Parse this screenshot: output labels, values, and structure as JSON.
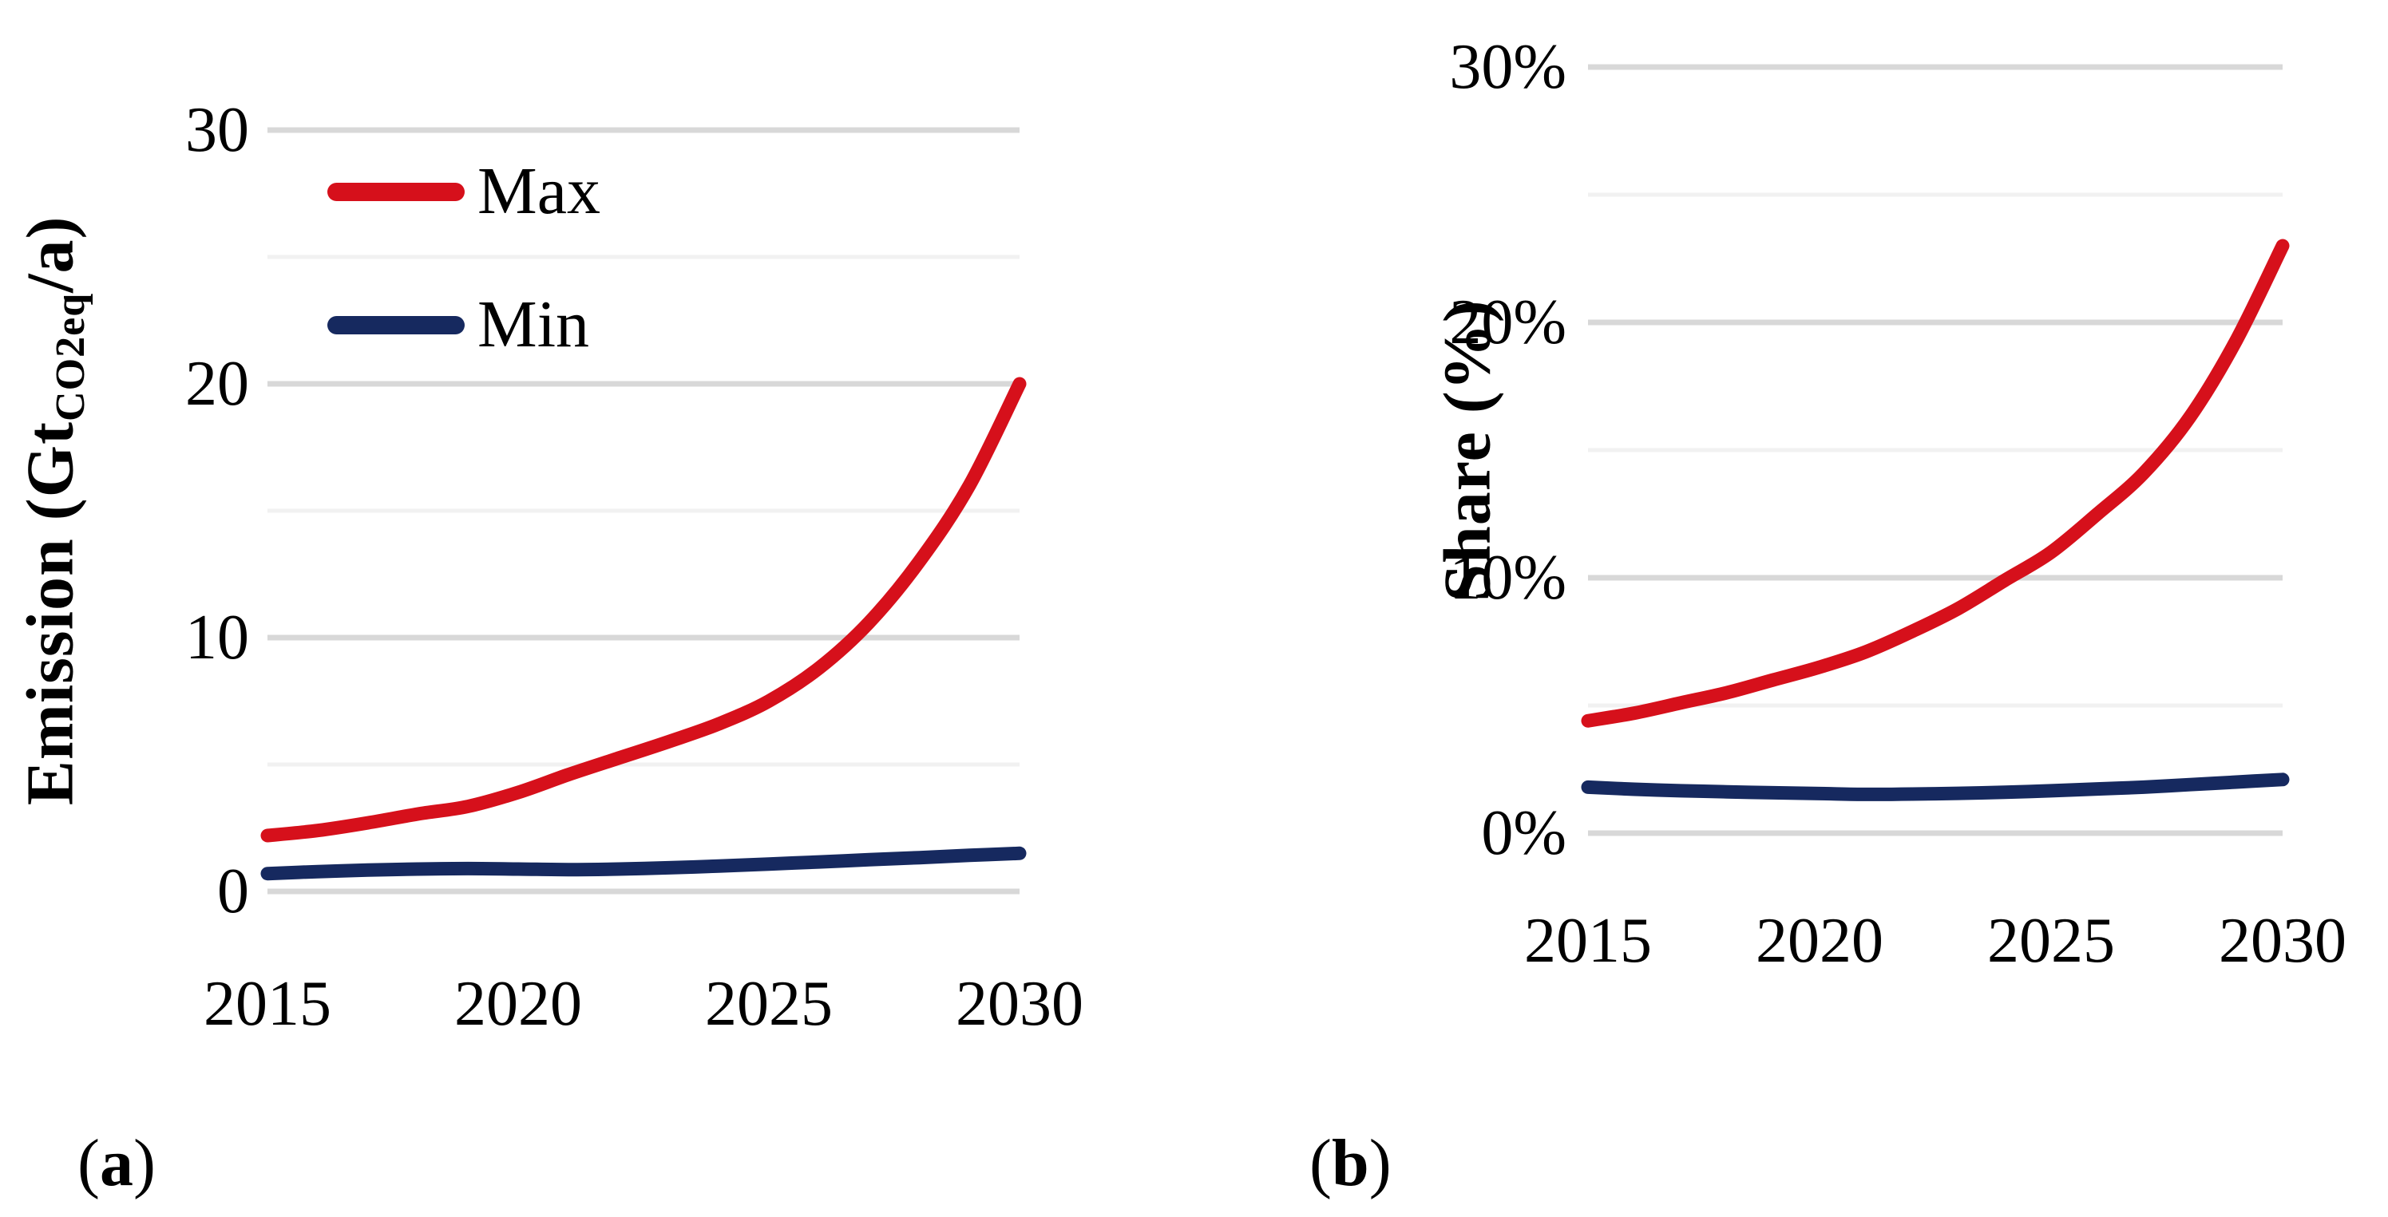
{
  "page": {
    "background": "#ffffff"
  },
  "colors": {
    "max": "#d6101b",
    "min": "#16295f",
    "grid_major": "#d8d8d8",
    "grid_minor": "#f1f1f1",
    "text": "#000000"
  },
  "legend": {
    "max_label": "Max",
    "min_label": "Min"
  },
  "captions": {
    "a": {
      "open": "(",
      "letter": "a",
      "close": ")"
    },
    "b": {
      "open": "(",
      "letter": "b",
      "close": ")"
    }
  },
  "chart_data": [
    {
      "id": "a",
      "type": "line",
      "title": "",
      "xlabel": "",
      "ylabel_parts": [
        {
          "text": "Emission (Gt"
        },
        {
          "text": "CO2eq",
          "sub": true
        },
        {
          "text": "/a)"
        }
      ],
      "x": [
        2015,
        2016,
        2017,
        2018,
        2019,
        2020,
        2021,
        2022,
        2023,
        2024,
        2025,
        2026,
        2027,
        2028,
        2029,
        2030
      ],
      "series": [
        {
          "name": "Max",
          "color_key": "max",
          "values": [
            2.2,
            2.4,
            2.7,
            3.05,
            3.35,
            3.9,
            4.6,
            5.25,
            5.9,
            6.6,
            7.5,
            8.8,
            10.6,
            13.0,
            16.0,
            20.0
          ]
        },
        {
          "name": "Min",
          "color_key": "min",
          "values": [
            0.7,
            0.78,
            0.84,
            0.88,
            0.9,
            0.88,
            0.86,
            0.88,
            0.93,
            1.0,
            1.08,
            1.16,
            1.25,
            1.33,
            1.42,
            1.5
          ]
        }
      ],
      "x_range": [
        2015,
        2030
      ],
      "y_range": [
        0,
        30
      ],
      "grid": true,
      "legend_position": "top-left-inside",
      "y_grid_major": [
        0,
        10,
        20,
        30
      ],
      "y_grid_minor": [
        5,
        15,
        25
      ],
      "y_ticks": [
        {
          "v": 0,
          "label": "0"
        },
        {
          "v": 10,
          "label": "10"
        },
        {
          "v": 20,
          "label": "20"
        },
        {
          "v": 30,
          "label": "30"
        }
      ],
      "x_ticks": [
        {
          "v": 2015,
          "label": "2015"
        },
        {
          "v": 2020,
          "label": "2020"
        },
        {
          "v": 2025,
          "label": "2025"
        },
        {
          "v": 2030,
          "label": "2030"
        }
      ]
    },
    {
      "id": "b",
      "type": "line",
      "title": "",
      "xlabel": "",
      "ylabel_parts": [
        {
          "text": "Share (%)"
        }
      ],
      "x": [
        2015,
        2016,
        2017,
        2018,
        2019,
        2020,
        2021,
        2022,
        2023,
        2024,
        2025,
        2026,
        2027,
        2028,
        2029,
        2030
      ],
      "series": [
        {
          "name": "Max",
          "color_key": "max",
          "values": [
            4.4,
            4.7,
            5.1,
            5.5,
            6.0,
            6.5,
            7.1,
            7.9,
            8.8,
            9.9,
            11.0,
            12.5,
            14.1,
            16.3,
            19.3,
            23.0
          ]
        },
        {
          "name": "Min",
          "color_key": "min",
          "values": [
            1.8,
            1.72,
            1.66,
            1.62,
            1.58,
            1.55,
            1.52,
            1.53,
            1.56,
            1.6,
            1.66,
            1.73,
            1.8,
            1.9,
            2.0,
            2.1
          ]
        }
      ],
      "x_range": [
        2015,
        2030
      ],
      "y_range": [
        0,
        30
      ],
      "grid": true,
      "legend_position": "none",
      "y_grid_major": [
        0,
        10,
        20,
        30
      ],
      "y_grid_minor": [
        5,
        15,
        25
      ],
      "y_ticks": [
        {
          "v": 0,
          "label": "0%"
        },
        {
          "v": 10,
          "label": "10%"
        },
        {
          "v": 20,
          "label": "20%"
        },
        {
          "v": 30,
          "label": "30%"
        }
      ],
      "x_ticks": [
        {
          "v": 2015,
          "label": "2015"
        },
        {
          "v": 2020,
          "label": "2020"
        },
        {
          "v": 2025,
          "label": "2025"
        },
        {
          "v": 2030,
          "label": "2030"
        }
      ]
    }
  ]
}
